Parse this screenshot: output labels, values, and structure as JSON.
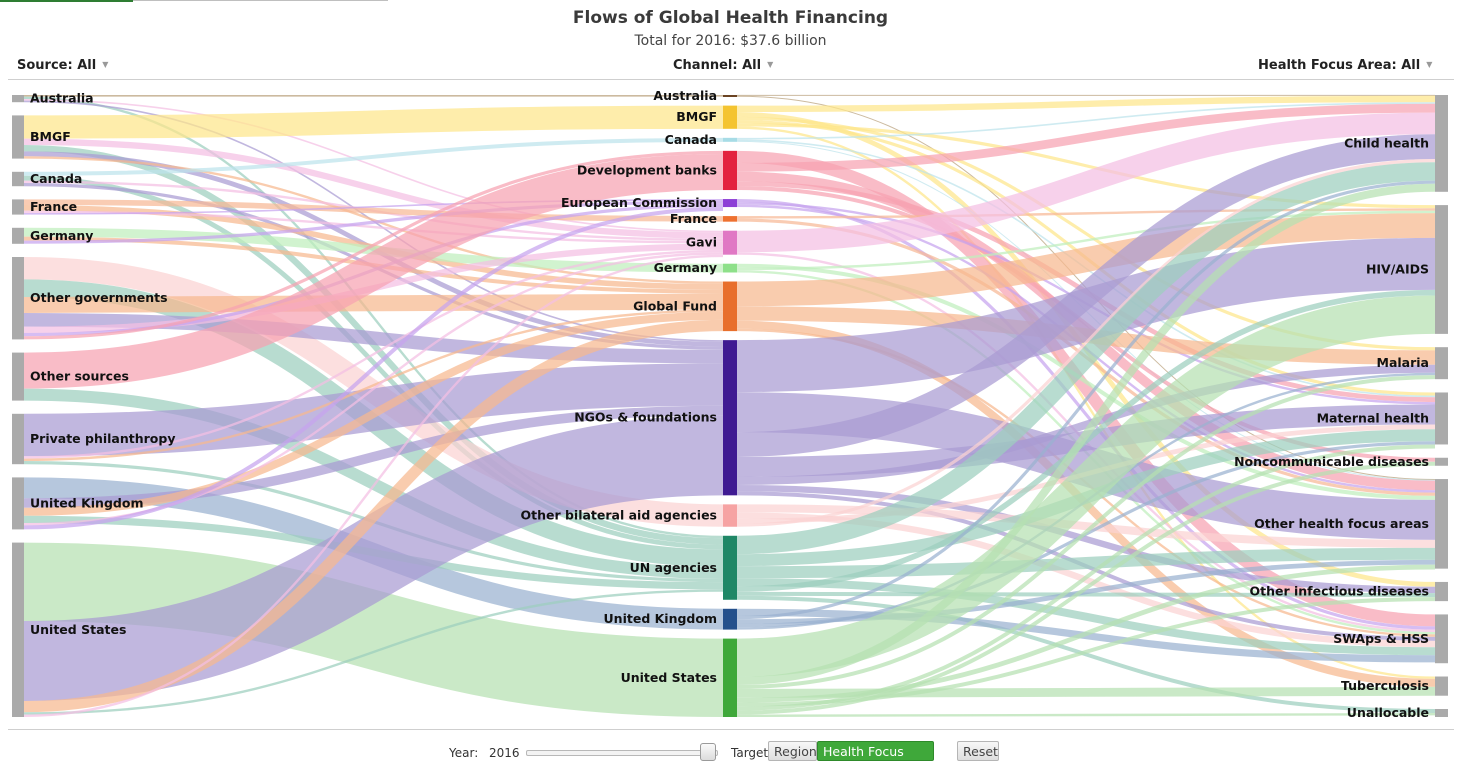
{
  "header": {
    "title": "Flows of Global Health Financing",
    "subtitle": "Total for 2016: $37.6 billion"
  },
  "filters": {
    "source": "Source: All",
    "channel": "Channel: All",
    "focus": "Health Focus Area: All"
  },
  "controls": {
    "year_label": "Year:",
    "year_value": "2016",
    "target_label": "Target",
    "btn_region": "Region",
    "btn_focus": "Health Focus Area",
    "btn_reset": "Reset"
  },
  "chart_data": {
    "type": "sankey",
    "total_billions": 37.6,
    "year": 2016,
    "unit": "US$ billions (estimated from node heights)",
    "sources": [
      {
        "name": "Australia",
        "value": 0.36
      },
      {
        "name": "BMGF",
        "value": 2.16
      },
      {
        "name": "Canada",
        "value": 0.72
      },
      {
        "name": "France",
        "value": 0.76
      },
      {
        "name": "Germany",
        "value": 0.8
      },
      {
        "name": "Other governments",
        "value": 4.12
      },
      {
        "name": "Other sources",
        "value": 2.4
      },
      {
        "name": "Private philanthropy",
        "value": 2.52
      },
      {
        "name": "United Kingdom",
        "value": 2.6
      },
      {
        "name": "United States",
        "value": 8.72
      }
    ],
    "channels": [
      {
        "name": "Australia",
        "value": 0.08,
        "color": "#6b4423"
      },
      {
        "name": "BMGF",
        "value": 1.16,
        "color": "#f4c430"
      },
      {
        "name": "Canada",
        "value": 0.2,
        "color": "#a7dce6"
      },
      {
        "name": "Development banks",
        "value": 1.96,
        "color": "#e3223f"
      },
      {
        "name": "European Commission",
        "value": 0.4,
        "color": "#8d3fd6"
      },
      {
        "name": "France",
        "value": 0.28,
        "color": "#ee7130"
      },
      {
        "name": "Gavi",
        "value": 1.2,
        "color": "#e078c4"
      },
      {
        "name": "Germany",
        "value": 0.44,
        "color": "#8ee08a"
      },
      {
        "name": "Global Fund",
        "value": 2.48,
        "color": "#e86f2c"
      },
      {
        "name": "NGOs & foundations",
        "value": 7.76,
        "color": "#3f1a92"
      },
      {
        "name": "Other bilateral aid agencies",
        "value": 1.12,
        "color": "#f6a3a3"
      },
      {
        "name": "UN agencies",
        "value": 3.2,
        "color": "#1f8766"
      },
      {
        "name": "United Kingdom",
        "value": 1.04,
        "color": "#24508c"
      },
      {
        "name": "United States",
        "value": 3.92,
        "color": "#3fa83a"
      }
    ],
    "focus_areas": [
      {
        "name": "Child health",
        "value": 4.84
      },
      {
        "name": "HIV/AIDS",
        "value": 6.44
      },
      {
        "name": "Malaria",
        "value": 1.6
      },
      {
        "name": "Maternal health",
        "value": 2.6
      },
      {
        "name": "Noncommunicable diseases",
        "value": 0.4
      },
      {
        "name": "Other health focus areas",
        "value": 4.48
      },
      {
        "name": "Other infectious diseases",
        "value": 0.96
      },
      {
        "name": "SWAps & HSS",
        "value": 2.44
      },
      {
        "name": "Tuberculosis",
        "value": 0.96
      },
      {
        "name": "Unallocable",
        "value": 0.4
      }
    ],
    "flows_sources_to_channels": [
      {
        "source": "Australia",
        "target": "Australia",
        "value": 0.08
      },
      {
        "source": "Australia",
        "target": "UN agencies",
        "value": 0.12
      },
      {
        "source": "Australia",
        "target": "Gavi",
        "value": 0.08
      },
      {
        "source": "Australia",
        "target": "NGOs & foundations",
        "value": 0.08
      },
      {
        "source": "BMGF",
        "target": "BMGF",
        "value": 1.16
      },
      {
        "source": "BMGF",
        "target": "Gavi",
        "value": 0.32
      },
      {
        "source": "BMGF",
        "target": "UN agencies",
        "value": 0.32
      },
      {
        "source": "BMGF",
        "target": "NGOs & foundations",
        "value": 0.24
      },
      {
        "source": "BMGF",
        "target": "Global Fund",
        "value": 0.12
      },
      {
        "source": "Canada",
        "target": "Canada",
        "value": 0.2
      },
      {
        "source": "Canada",
        "target": "UN agencies",
        "value": 0.24
      },
      {
        "source": "Canada",
        "target": "Gavi",
        "value": 0.12
      },
      {
        "source": "Canada",
        "target": "NGOs & foundations",
        "value": 0.16
      },
      {
        "source": "France",
        "target": "France",
        "value": 0.28
      },
      {
        "source": "France",
        "target": "Global Fund",
        "value": 0.28
      },
      {
        "source": "France",
        "target": "Gavi",
        "value": 0.12
      },
      {
        "source": "France",
        "target": "European Commission",
        "value": 0.08
      },
      {
        "source": "Germany",
        "target": "Germany",
        "value": 0.44
      },
      {
        "source": "Germany",
        "target": "Global Fund",
        "value": 0.2
      },
      {
        "source": "Germany",
        "target": "European Commission",
        "value": 0.16
      },
      {
        "source": "Other governments",
        "target": "Other bilateral aid agencies",
        "value": 1.12
      },
      {
        "source": "Other governments",
        "target": "UN agencies",
        "value": 0.88
      },
      {
        "source": "Other governments",
        "target": "Global Fund",
        "value": 0.8
      },
      {
        "source": "Other governments",
        "target": "NGOs & foundations",
        "value": 0.68
      },
      {
        "source": "Other governments",
        "target": "Gavi",
        "value": 0.32
      },
      {
        "source": "Other governments",
        "target": "European Commission",
        "value": 0.16
      },
      {
        "source": "Other governments",
        "target": "Development banks",
        "value": 0.16
      },
      {
        "source": "Other sources",
        "target": "Development banks",
        "value": 1.8
      },
      {
        "source": "Other sources",
        "target": "UN agencies",
        "value": 0.6
      },
      {
        "source": "Private philanthropy",
        "target": "NGOs & foundations",
        "value": 2.12
      },
      {
        "source": "Private philanthropy",
        "target": "Gavi",
        "value": 0.12
      },
      {
        "source": "Private philanthropy",
        "target": "Global Fund",
        "value": 0.12
      },
      {
        "source": "Private philanthropy",
        "target": "UN agencies",
        "value": 0.16
      },
      {
        "source": "United Kingdom",
        "target": "United Kingdom",
        "value": 1.04
      },
      {
        "source": "United Kingdom",
        "target": "NGOs & foundations",
        "value": 0.48
      },
      {
        "source": "United Kingdom",
        "target": "Global Fund",
        "value": 0.4
      },
      {
        "source": "United Kingdom",
        "target": "UN agencies",
        "value": 0.36
      },
      {
        "source": "United Kingdom",
        "target": "Gavi",
        "value": 0.12
      },
      {
        "source": "United Kingdom",
        "target": "European Commission",
        "value": 0.2
      },
      {
        "source": "United States",
        "target": "United States",
        "value": 3.92
      },
      {
        "source": "United States",
        "target": "NGOs & foundations",
        "value": 4.0
      },
      {
        "source": "United States",
        "target": "Global Fund",
        "value": 0.56
      },
      {
        "source": "United States",
        "target": "UN agencies",
        "value": 0.12
      },
      {
        "source": "United States",
        "target": "Gavi",
        "value": 0.12
      }
    ],
    "flows_channels_to_focus": [
      {
        "source": "Australia",
        "target": "Child health",
        "value": 0.04
      },
      {
        "source": "Australia",
        "target": "Other health focus areas",
        "value": 0.04
      },
      {
        "source": "BMGF",
        "target": "Child health",
        "value": 0.32
      },
      {
        "source": "BMGF",
        "target": "Other infectious diseases",
        "value": 0.24
      },
      {
        "source": "BMGF",
        "target": "Malaria",
        "value": 0.16
      },
      {
        "source": "BMGF",
        "target": "Maternal health",
        "value": 0.16
      },
      {
        "source": "BMGF",
        "target": "HIV/AIDS",
        "value": 0.16
      },
      {
        "source": "BMGF",
        "target": "Tuberculosis",
        "value": 0.12
      },
      {
        "source": "Canada",
        "target": "Child health",
        "value": 0.08
      },
      {
        "source": "Canada",
        "target": "Maternal health",
        "value": 0.08
      },
      {
        "source": "Canada",
        "target": "Other health focus areas",
        "value": 0.04
      },
      {
        "source": "Development banks",
        "target": "SWAps & HSS",
        "value": 0.6
      },
      {
        "source": "Development banks",
        "target": "Child health",
        "value": 0.44
      },
      {
        "source": "Development banks",
        "target": "Other health focus areas",
        "value": 0.48
      },
      {
        "source": "Development banks",
        "target": "Maternal health",
        "value": 0.24
      },
      {
        "source": "Development banks",
        "target": "Noncommunicable diseases",
        "value": 0.2
      },
      {
        "source": "European Commission",
        "target": "SWAps & HSS",
        "value": 0.16
      },
      {
        "source": "European Commission",
        "target": "Maternal health",
        "value": 0.12
      },
      {
        "source": "European Commission",
        "target": "Other health focus areas",
        "value": 0.12
      },
      {
        "source": "France",
        "target": "HIV/AIDS",
        "value": 0.12
      },
      {
        "source": "France",
        "target": "Other health focus areas",
        "value": 0.16
      },
      {
        "source": "Gavi",
        "target": "Child health",
        "value": 1.08
      },
      {
        "source": "Gavi",
        "target": "SWAps & HSS",
        "value": 0.12
      },
      {
        "source": "Germany",
        "target": "Other health focus areas",
        "value": 0.2
      },
      {
        "source": "Germany",
        "target": "HIV/AIDS",
        "value": 0.12
      },
      {
        "source": "Germany",
        "target": "SWAps & HSS",
        "value": 0.12
      },
      {
        "source": "Global Fund",
        "target": "HIV/AIDS",
        "value": 1.24
      },
      {
        "source": "Global Fund",
        "target": "Malaria",
        "value": 0.72
      },
      {
        "source": "Global Fund",
        "target": "Tuberculosis",
        "value": 0.4
      },
      {
        "source": "Global Fund",
        "target": "SWAps & HSS",
        "value": 0.12
      },
      {
        "source": "NGOs & foundations",
        "target": "HIV/AIDS",
        "value": 2.6
      },
      {
        "source": "NGOs & foundations",
        "target": "Other health focus areas",
        "value": 2.0
      },
      {
        "source": "NGOs & foundations",
        "target": "Child health",
        "value": 1.24
      },
      {
        "source": "NGOs & foundations",
        "target": "Maternal health",
        "value": 1.0
      },
      {
        "source": "NGOs & foundations",
        "target": "Malaria",
        "value": 0.4
      },
      {
        "source": "NGOs & foundations",
        "target": "Other infectious diseases",
        "value": 0.32
      },
      {
        "source": "NGOs & foundations",
        "target": "SWAps & HSS",
        "value": 0.2
      },
      {
        "source": "Other bilateral aid agencies",
        "target": "Other health focus areas",
        "value": 0.4
      },
      {
        "source": "Other bilateral aid agencies",
        "target": "SWAps & HSS",
        "value": 0.32
      },
      {
        "source": "Other bilateral aid agencies",
        "target": "Maternal health",
        "value": 0.24
      },
      {
        "source": "Other bilateral aid agencies",
        "target": "Child health",
        "value": 0.16
      },
      {
        "source": "UN agencies",
        "target": "Child health",
        "value": 0.92
      },
      {
        "source": "UN agencies",
        "target": "Maternal health",
        "value": 0.6
      },
      {
        "source": "UN agencies",
        "target": "Other health focus areas",
        "value": 0.6
      },
      {
        "source": "UN agencies",
        "target": "SWAps & HSS",
        "value": 0.4
      },
      {
        "source": "UN agencies",
        "target": "HIV/AIDS",
        "value": 0.28
      },
      {
        "source": "UN agencies",
        "target": "Other infectious diseases",
        "value": 0.2
      },
      {
        "source": "UN agencies",
        "target": "Unallocable",
        "value": 0.2
      },
      {
        "source": "United Kingdom",
        "target": "SWAps & HSS",
        "value": 0.36
      },
      {
        "source": "United Kingdom",
        "target": "Child health",
        "value": 0.16
      },
      {
        "source": "United Kingdom",
        "target": "Other health focus areas",
        "value": 0.24
      },
      {
        "source": "United Kingdom",
        "target": "Maternal health",
        "value": 0.16
      },
      {
        "source": "United Kingdom",
        "target": "Malaria",
        "value": 0.12
      },
      {
        "source": "United States",
        "target": "HIV/AIDS",
        "value": 1.92
      },
      {
        "source": "United States",
        "target": "Child health",
        "value": 0.4
      },
      {
        "source": "United States",
        "target": "Malaria",
        "value": 0.2
      },
      {
        "source": "United States",
        "target": "Tuberculosis",
        "value": 0.44
      },
      {
        "source": "United States",
        "target": "Other health focus areas",
        "value": 0.24
      },
      {
        "source": "United States",
        "target": "Other infectious diseases",
        "value": 0.2
      },
      {
        "source": "United States",
        "target": "Maternal health",
        "value": 0.2
      },
      {
        "source": "United States",
        "target": "Noncommunicable diseases",
        "value": 0.2
      },
      {
        "source": "United States",
        "target": "Unallocable",
        "value": 0.12
      }
    ]
  }
}
